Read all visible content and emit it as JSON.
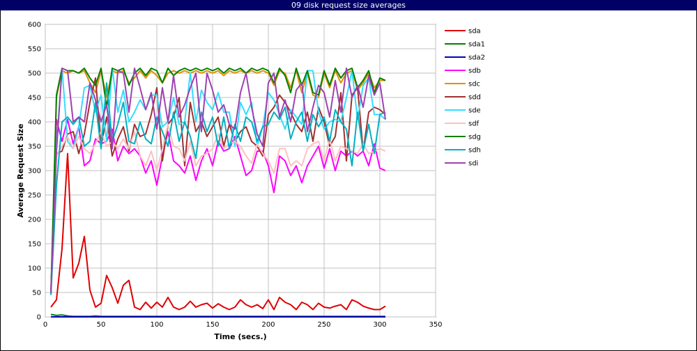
{
  "window": {
    "title": "09 disk request size averages"
  },
  "chart_data": {
    "type": "line",
    "title": "09 disk request size averages",
    "xlabel": "Time (secs.)",
    "ylabel": "Average Request Size",
    "xlim": [
      0,
      350
    ],
    "ylim": [
      0,
      600
    ],
    "xticks": [
      0,
      50,
      100,
      150,
      200,
      250,
      300,
      350
    ],
    "yticks": [
      0,
      50,
      100,
      150,
      200,
      250,
      300,
      350,
      400,
      450,
      500,
      550,
      600
    ],
    "grid": true,
    "legend_position": "right",
    "x": [
      5,
      10,
      15,
      20,
      25,
      30,
      35,
      40,
      45,
      50,
      55,
      60,
      65,
      70,
      75,
      80,
      85,
      90,
      95,
      100,
      105,
      110,
      115,
      120,
      125,
      130,
      135,
      140,
      145,
      150,
      155,
      160,
      165,
      170,
      175,
      180,
      185,
      190,
      195,
      200,
      205,
      210,
      215,
      220,
      225,
      230,
      235,
      240,
      245,
      250,
      255,
      260,
      265,
      270,
      275,
      280,
      285,
      290,
      295,
      300,
      305
    ],
    "series": [
      {
        "name": "sda",
        "color": "#e00000",
        "values": [
          20,
          35,
          140,
          335,
          80,
          110,
          165,
          55,
          20,
          28,
          85,
          60,
          28,
          65,
          75,
          20,
          15,
          30,
          18,
          30,
          20,
          40,
          20,
          15,
          20,
          32,
          20,
          25,
          28,
          18,
          27,
          20,
          15,
          20,
          35,
          25,
          20,
          25,
          17,
          35,
          15,
          40,
          30,
          25,
          15,
          30,
          25,
          15,
          28,
          20,
          18,
          22,
          25,
          15,
          35,
          30,
          22,
          18,
          15,
          15,
          22
        ]
      },
      {
        "name": "sda1",
        "color": "#008000",
        "values": [
          5,
          3,
          4,
          2,
          1,
          1,
          1,
          1,
          2,
          1,
          1,
          1,
          1,
          1,
          1,
          1,
          1,
          1,
          1,
          1,
          1,
          1,
          1,
          1,
          1,
          1,
          1,
          1,
          1,
          1,
          1,
          1,
          1,
          1,
          1,
          1,
          1,
          1,
          1,
          1,
          1,
          1,
          1,
          1,
          1,
          1,
          1,
          1,
          1,
          1,
          1,
          1,
          1,
          1,
          1,
          1,
          1,
          1,
          1,
          1,
          1
        ]
      },
      {
        "name": "sda2",
        "color": "#0000c0",
        "values": [
          0,
          0,
          0,
          0,
          0,
          0,
          0,
          0,
          0,
          0,
          0,
          0,
          0,
          0,
          0,
          0,
          0,
          0,
          0,
          0,
          0,
          0,
          0,
          0,
          0,
          0,
          0,
          0,
          0,
          0,
          0,
          0,
          0,
          0,
          0,
          0,
          0,
          0,
          0,
          0,
          0,
          0,
          0,
          0,
          0,
          0,
          0,
          0,
          0,
          0,
          0,
          0,
          0,
          0,
          0,
          0,
          0,
          0,
          0,
          0,
          0
        ]
      },
      {
        "name": "sdb",
        "color": "#ff00ff",
        "values": [
          45,
          405,
          360,
          405,
          355,
          390,
          310,
          320,
          365,
          355,
          360,
          385,
          320,
          350,
          335,
          345,
          330,
          295,
          320,
          270,
          330,
          380,
          320,
          310,
          295,
          330,
          280,
          320,
          345,
          310,
          360,
          340,
          345,
          370,
          330,
          290,
          300,
          340,
          340,
          310,
          255,
          330,
          320,
          290,
          310,
          275,
          310,
          330,
          350,
          305,
          345,
          300,
          340,
          330,
          340,
          330,
          340,
          310,
          355,
          305,
          300
        ]
      },
      {
        "name": "sdc",
        "color": "#e09000",
        "values": [
          45,
          450,
          505,
          500,
          505,
          500,
          505,
          480,
          460,
          505,
          450,
          505,
          500,
          505,
          480,
          490,
          505,
          490,
          505,
          495,
          480,
          500,
          505,
          500,
          505,
          500,
          505,
          500,
          505,
          500,
          505,
          495,
          505,
          500,
          505,
          500,
          505,
          500,
          505,
          500,
          475,
          505,
          500,
          470,
          505,
          460,
          500,
          455,
          450,
          500,
          470,
          505,
          480,
          500,
          505,
          465,
          480,
          500,
          470,
          485,
          485
        ]
      },
      {
        "name": "sdd",
        "color": "#a03030",
        "values": [
          50,
          335,
          340,
          375,
          380,
          335,
          375,
          440,
          490,
          350,
          410,
          330,
          365,
          390,
          340,
          395,
          370,
          375,
          415,
          470,
          320,
          395,
          410,
          450,
          310,
          440,
          380,
          400,
          370,
          390,
          410,
          350,
          395,
          360,
          380,
          390,
          360,
          350,
          330,
          415,
          430,
          455,
          440,
          420,
          395,
          380,
          420,
          360,
          430,
          400,
          350,
          370,
          460,
          320,
          455,
          470,
          340,
          420,
          430,
          425,
          415
        ]
      },
      {
        "name": "sde",
        "color": "#33ddff",
        "values": [
          45,
          350,
          510,
          360,
          345,
          390,
          470,
          475,
          420,
          455,
          360,
          510,
          420,
          465,
          400,
          420,
          445,
          425,
          455,
          455,
          390,
          400,
          450,
          395,
          400,
          500,
          400,
          465,
          440,
          425,
          460,
          420,
          420,
          350,
          440,
          415,
          440,
          350,
          390,
          460,
          445,
          415,
          385,
          425,
          410,
          395,
          505,
          505,
          420,
          385,
          400,
          405,
          400,
          450,
          505,
          405,
          475,
          490,
          415,
          415,
          405
        ]
      },
      {
        "name": "sdf",
        "color": "#ffc0c0",
        "values": [
          45,
          330,
          350,
          370,
          345,
          370,
          345,
          335,
          355,
          380,
          350,
          360,
          345,
          365,
          345,
          380,
          330,
          310,
          340,
          300,
          345,
          395,
          350,
          345,
          320,
          360,
          310,
          330,
          335,
          345,
          375,
          345,
          355,
          360,
          350,
          330,
          315,
          355,
          335,
          320,
          295,
          345,
          345,
          310,
          320,
          310,
          345,
          355,
          360,
          320,
          365,
          320,
          350,
          345,
          340,
          335,
          355,
          335,
          340,
          345,
          340
        ]
      },
      {
        "name": "sdg",
        "color": "#008000",
        "values": [
          45,
          455,
          510,
          505,
          505,
          500,
          510,
          490,
          475,
          510,
          430,
          510,
          505,
          510,
          475,
          500,
          510,
          495,
          510,
          505,
          480,
          510,
          495,
          505,
          510,
          505,
          510,
          505,
          510,
          505,
          510,
          500,
          510,
          505,
          510,
          500,
          510,
          505,
          510,
          505,
          480,
          510,
          495,
          460,
          510,
          475,
          505,
          460,
          455,
          505,
          475,
          510,
          490,
          505,
          510,
          470,
          485,
          505,
          460,
          490,
          485
        ]
      },
      {
        "name": "sdh",
        "color": "#00b0c0",
        "values": [
          45,
          270,
          400,
          410,
          395,
          410,
          350,
          360,
          440,
          345,
          480,
          360,
          395,
          440,
          360,
          355,
          400,
          365,
          355,
          410,
          380,
          350,
          420,
          360,
          400,
          370,
          325,
          420,
          380,
          410,
          350,
          410,
          345,
          395,
          360,
          410,
          400,
          360,
          390,
          395,
          420,
          405,
          430,
          365,
          400,
          420,
          360,
          415,
          390,
          410,
          360,
          425,
          400,
          385,
          310,
          420,
          340,
          395,
          335,
          415,
          420
        ]
      },
      {
        "name": "sdi",
        "color": "#a040b0",
        "values": [
          50,
          340,
          510,
          505,
          400,
          410,
          400,
          480,
          445,
          400,
          435,
          345,
          505,
          500,
          420,
          510,
          470,
          425,
          460,
          385,
          470,
          400,
          495,
          410,
          435,
          470,
          500,
          380,
          500,
          465,
          420,
          435,
          395,
          385,
          460,
          500,
          430,
          375,
          350,
          480,
          500,
          410,
          445,
          400,
          465,
          480,
          380,
          430,
          475,
          460,
          410,
          485,
          420,
          510,
          450,
          475,
          430,
          495,
          455,
          480,
          405
        ]
      }
    ]
  }
}
